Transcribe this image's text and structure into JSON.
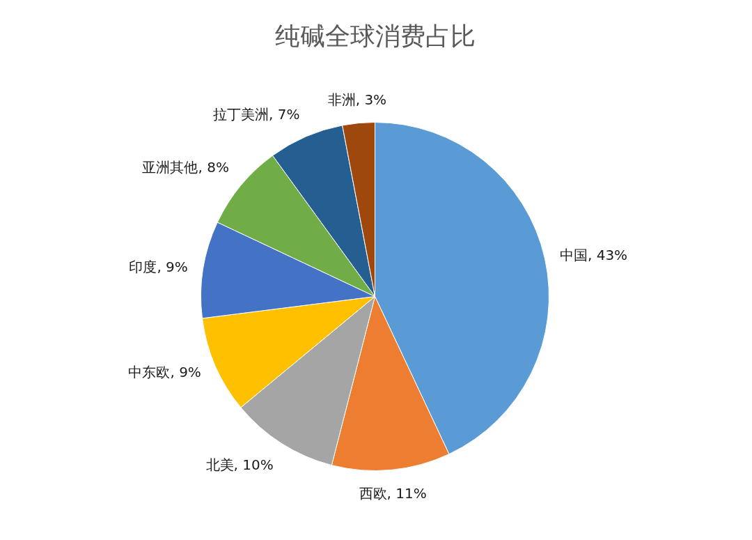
{
  "chart_data": {
    "type": "pie",
    "title": "纯碱全球消费占比",
    "categories": [
      "中国",
      "西欧",
      "北美",
      "中东欧",
      "印度",
      "亚洲其他",
      "拉丁美洲",
      "非洲"
    ],
    "values": [
      43,
      11,
      10,
      9,
      9,
      8,
      7,
      3
    ],
    "colors": [
      "#5b9bd5",
      "#ed7d31",
      "#a5a5a5",
      "#ffc000",
      "#4472c4",
      "#70ad47",
      "#255e91",
      "#9e480e"
    ],
    "value_labels": [
      "43%",
      "11%",
      "10%",
      "9%",
      "9%",
      "8%",
      "7%",
      "3%"
    ]
  }
}
